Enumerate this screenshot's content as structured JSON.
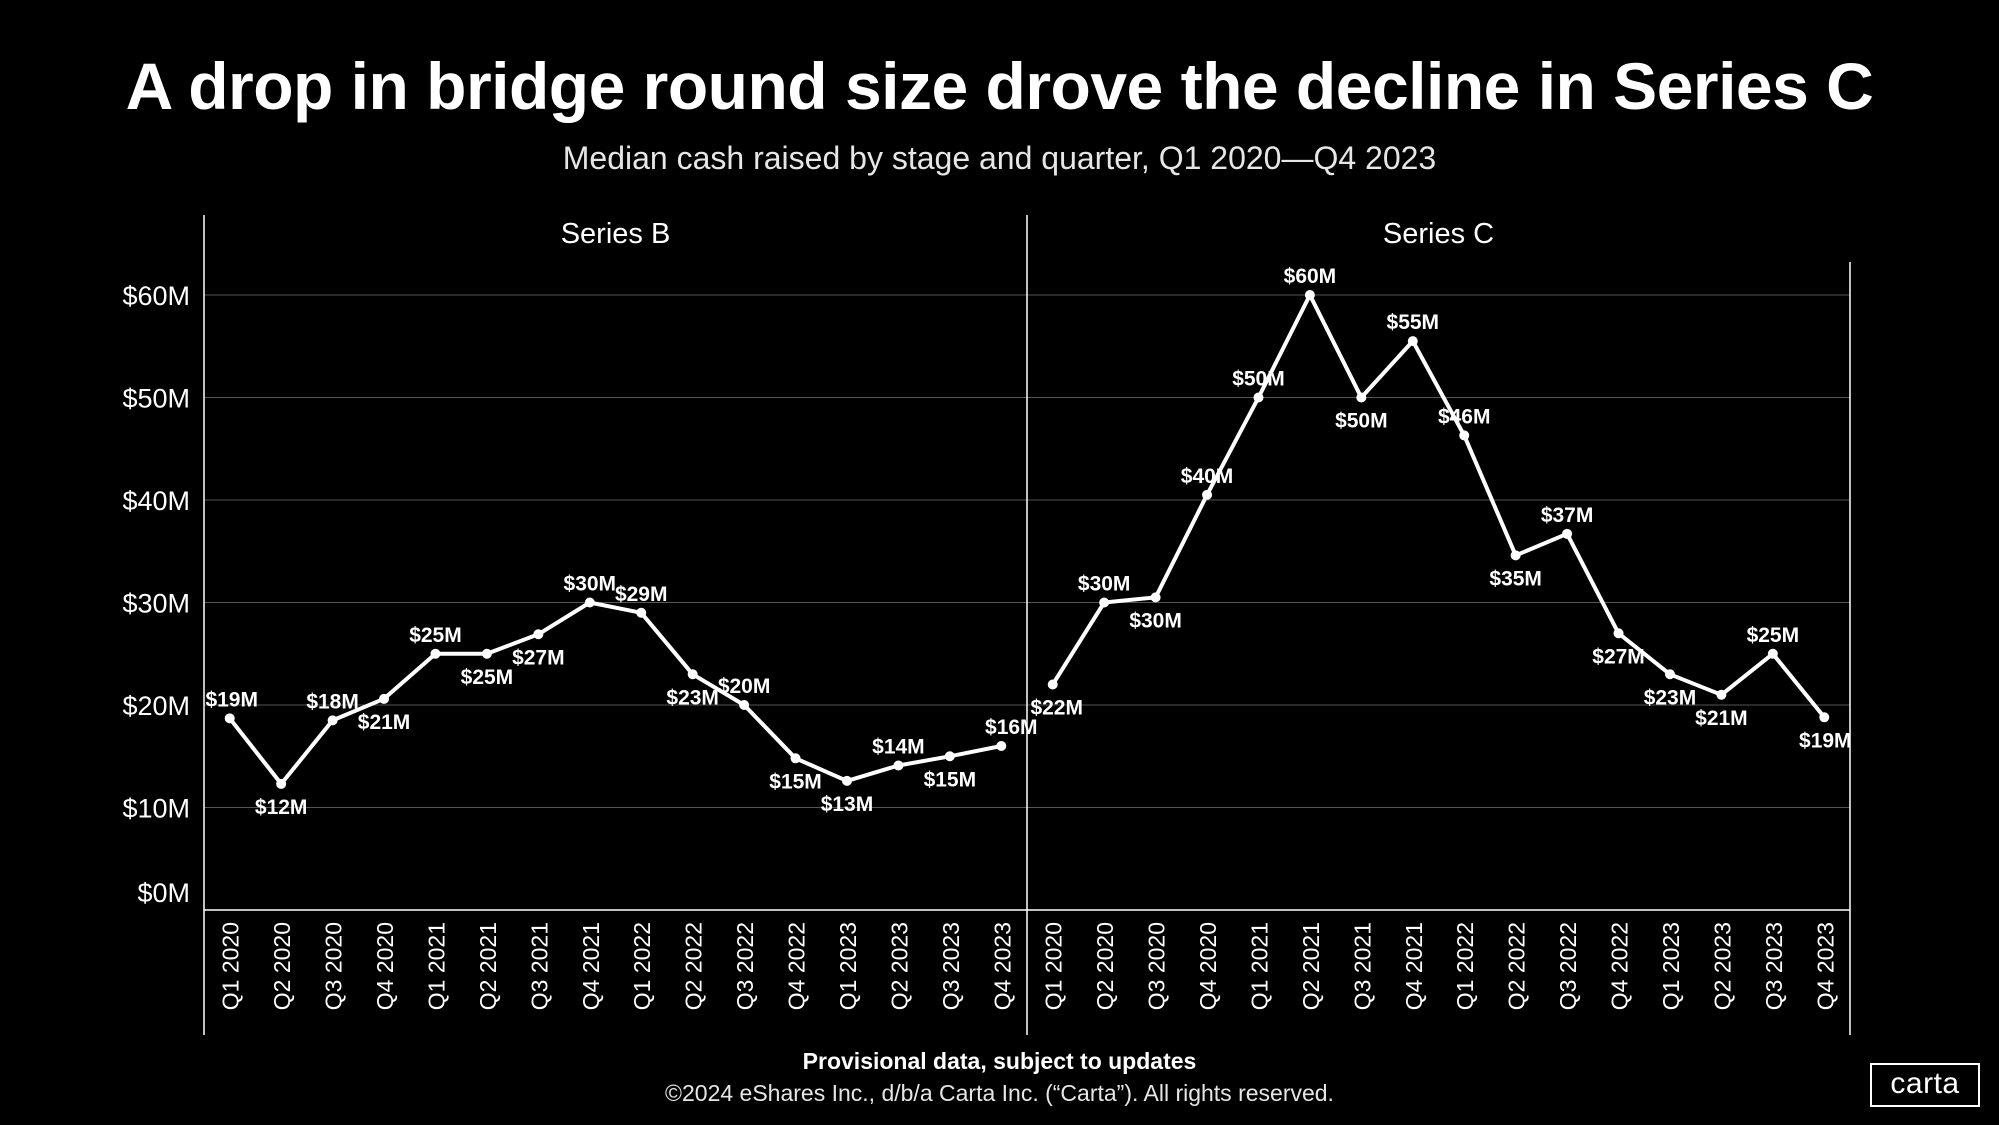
{
  "title": "A drop in bridge round size drove the decline in Series C",
  "subtitle": "Median cash raised by stage and quarter, Q1 2020—Q4 2023",
  "footer": {
    "note": "Provisional data, subject to updates",
    "copyright": "©2024 eShares Inc., d/b/a Carta Inc. (“Carta”). All rights reserved."
  },
  "logo": "carta",
  "colors": {
    "background": "#000000",
    "line": "#ffffff",
    "grid": "#555555"
  },
  "chart_data": {
    "type": "line",
    "ylim": [
      0,
      60
    ],
    "yticks": [
      "$0M",
      "$10M",
      "$20M",
      "$30M",
      "$40M",
      "$50M",
      "$60M"
    ],
    "categories": [
      "Q1 2020",
      "Q2 2020",
      "Q3 2020",
      "Q4 2020",
      "Q1 2021",
      "Q2 2021",
      "Q3 2021",
      "Q4 2021",
      "Q1 2022",
      "Q2 2022",
      "Q3 2022",
      "Q4 2022",
      "Q1 2023",
      "Q2 2023",
      "Q3 2023",
      "Q4 2023"
    ],
    "series": [
      {
        "name": "Series B",
        "values": [
          18.7,
          12.3,
          18.5,
          20.6,
          25.0,
          25.0,
          26.9,
          30.0,
          29.0,
          23.0,
          20.0,
          14.8,
          12.6,
          14.1,
          15.0,
          16.0
        ],
        "labels": [
          "$19M",
          "$12M",
          "$18M",
          "$21M",
          "$25M",
          "$25M",
          "$27M",
          "$30M",
          "$29M",
          "$23M",
          "$20M",
          "$15M",
          "$13M",
          "$14M",
          "$15M",
          "$16M"
        ],
        "label_pos": [
          "above",
          "below",
          "above",
          "below",
          "above",
          "below",
          "below",
          "above",
          "above",
          "below",
          "above",
          "below",
          "below",
          "above",
          "below",
          "above"
        ]
      },
      {
        "name": "Series C",
        "values": [
          22.0,
          30.0,
          30.5,
          40.5,
          50.0,
          60.0,
          50.0,
          55.5,
          46.3,
          34.6,
          36.7,
          27.0,
          23.0,
          21.0,
          25.0,
          18.8
        ],
        "labels": [
          "$22M",
          "$30M",
          "$30M",
          "$40M",
          "$50M",
          "$60M",
          "$50M",
          "$55M",
          "$46M",
          "$35M",
          "$37M",
          "$27M",
          "$23M",
          "$21M",
          "$25M",
          "$19M"
        ],
        "label_pos": [
          "below",
          "above",
          "below",
          "above",
          "above",
          "above",
          "below",
          "above",
          "above",
          "below",
          "above",
          "below",
          "below",
          "below",
          "above",
          "below"
        ]
      }
    ]
  }
}
